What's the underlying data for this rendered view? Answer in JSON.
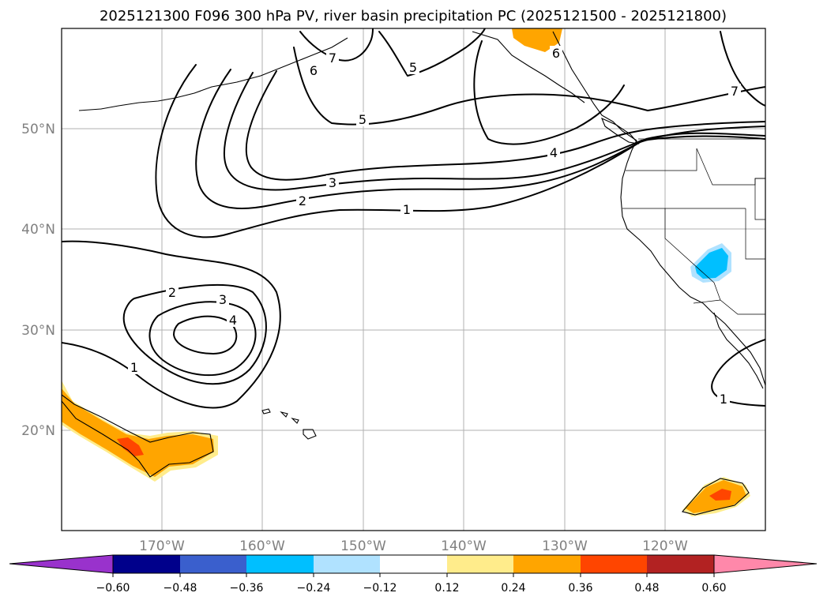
{
  "title": "2025121300 F096 300 hPa PV, river basin precipitation PC (2025121500 - 2025121800)",
  "map": {
    "lon_labels": [
      "170°W",
      "160°W",
      "150°W",
      "140°W",
      "130°W",
      "120°W"
    ],
    "lat_labels": [
      "50°N",
      "40°N",
      "30°N",
      "20°N"
    ],
    "lon_range": [
      -180,
      -110
    ],
    "lat_range": [
      10,
      60
    ]
  },
  "contour_labels": {
    "north_1": "1",
    "north_2": "2",
    "north_3": "3",
    "north_4": "4",
    "north_5": "5",
    "north_5b": "5",
    "north_6": "6",
    "north_6b": "6",
    "north_7": "7",
    "north_7b": "7",
    "south_1": "1",
    "south_2": "2",
    "south_3": "3",
    "south_4": "4",
    "east_1": "1"
  },
  "colorbar": {
    "ticks": [
      "−0.60",
      "−0.48",
      "−0.36",
      "−0.24",
      "−0.12",
      "0.12",
      "0.24",
      "0.36",
      "0.48",
      "0.60"
    ],
    "colors": [
      "#9932cc",
      "#00008b",
      "#3a5fcd",
      "#00bfff",
      "#b0e2ff",
      "#ffffff",
      "#ffec8b",
      "#ffa500",
      "#ff4500",
      "#b22222",
      "#ff88aa"
    ]
  },
  "colors": {
    "positive_light": "#ffec8b",
    "positive": "#ffa500",
    "positive_strong": "#ff4500",
    "negative_light": "#b0e2ff",
    "negative": "#00bfff"
  }
}
